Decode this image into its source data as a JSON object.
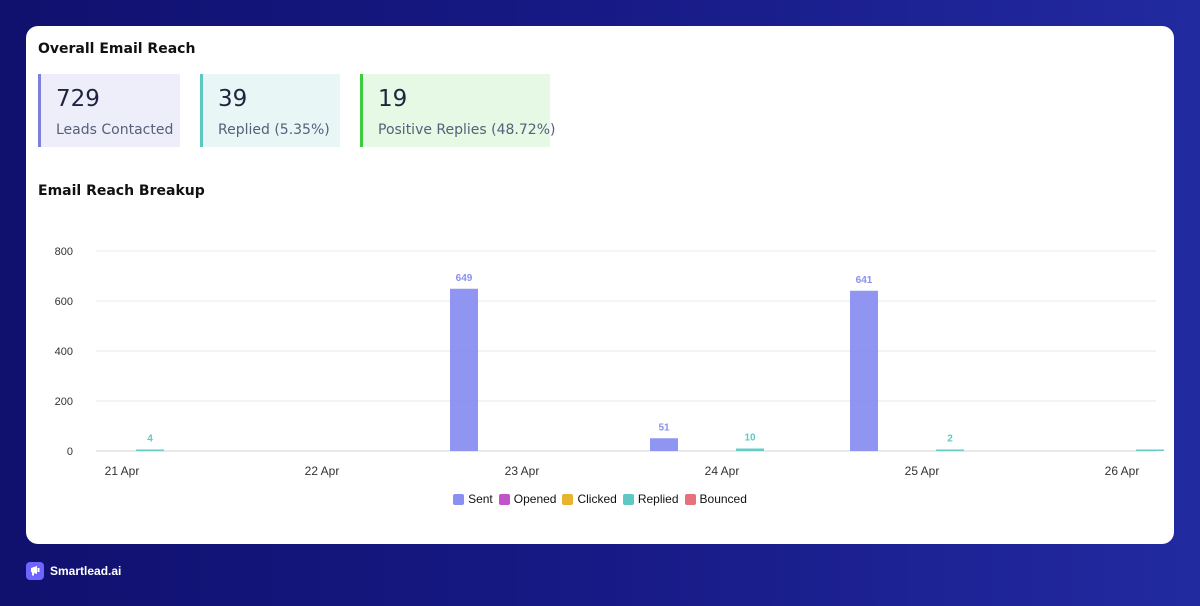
{
  "header": {
    "overall_title": "Overall Email Reach",
    "breakup_title": "Email Reach Breakup"
  },
  "stats": [
    {
      "value": "729",
      "label": "Leads Contacted",
      "color": "#7d7fd8"
    },
    {
      "value": "39",
      "label": "Replied (5.35%)",
      "color": "#5cc8c0"
    },
    {
      "value": "19",
      "label": "Positive Replies (48.72%)",
      "color": "#3ecb3e"
    }
  ],
  "chart_data": {
    "type": "bar",
    "categories": [
      "21 Apr",
      "22 Apr",
      "23 Apr",
      "24 Apr",
      "25 Apr",
      "26 Apr"
    ],
    "ylim": [
      0,
      800
    ],
    "yticks": [
      0,
      200,
      400,
      600,
      800
    ],
    "grid": true,
    "legend_placement": "bottom-center",
    "series": [
      {
        "name": "Sent",
        "color": "#8a8ff0",
        "points": [
          {
            "date": "23 Apr",
            "value": 649
          },
          {
            "date": "24 Apr",
            "value": 51
          },
          {
            "date": "25 Apr",
            "value": 641
          }
        ]
      },
      {
        "name": "Opened",
        "color": "#c154c8",
        "points": []
      },
      {
        "name": "Clicked",
        "color": "#e6b42f",
        "points": []
      },
      {
        "name": "Replied",
        "color": "#5fc8c4",
        "points": [
          {
            "date": "21 Apr",
            "value": 4
          },
          {
            "date": "24 Apr",
            "value": 10
          },
          {
            "date": "25 Apr",
            "value": 2
          },
          {
            "date": "26 Apr",
            "value": 6
          }
        ]
      },
      {
        "name": "Bounced",
        "color": "#e8707c",
        "points": []
      }
    ],
    "data_labels": [
      {
        "series": "Replied",
        "date": "21 Apr",
        "text": "4"
      },
      {
        "series": "Sent",
        "date": "23 Apr",
        "text": "649"
      },
      {
        "series": "Replied",
        "date": "24 Apr",
        "text": "10"
      },
      {
        "series": "Sent",
        "date": "24 Apr",
        "text": "51"
      },
      {
        "series": "Replied",
        "date": "25 Apr",
        "text": "2"
      },
      {
        "series": "Sent",
        "date": "25 Apr",
        "text": "641"
      }
    ]
  },
  "brand": {
    "name": "Smartlead.ai",
    "color": "#6f64ff"
  }
}
